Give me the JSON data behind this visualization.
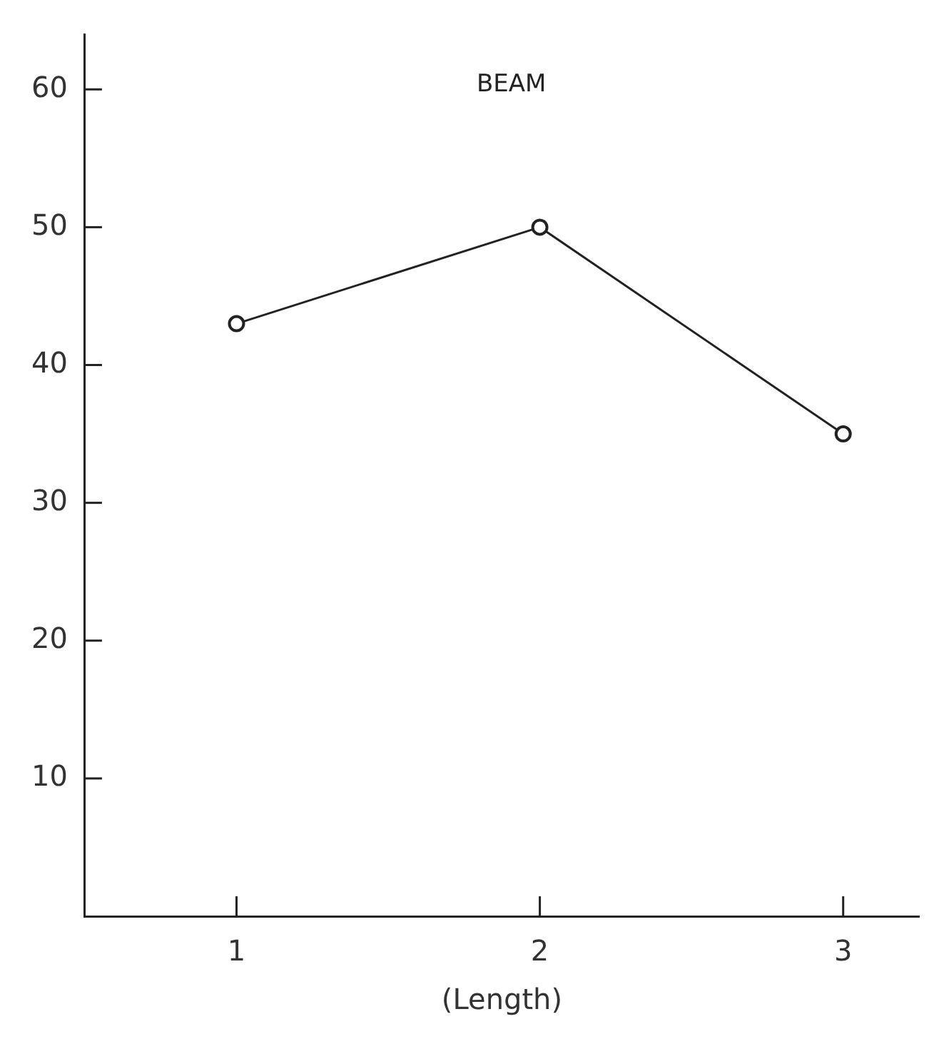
{
  "chart_data": {
    "type": "line",
    "xlabel": "(Length)",
    "x": [
      1,
      2,
      3
    ],
    "series": [
      {
        "name": "BEAM",
        "color": "#222222",
        "values": [
          43,
          50,
          35
        ]
      }
    ],
    "xlim": [
      0.5,
      3.25
    ],
    "xticks": [
      1,
      2,
      3
    ],
    "ylim": [
      0,
      64
    ],
    "yticks": [
      10,
      20,
      30,
      40,
      50,
      60
    ],
    "grid": false,
    "legend": false,
    "marker": "circle",
    "line_style": "solid"
  }
}
